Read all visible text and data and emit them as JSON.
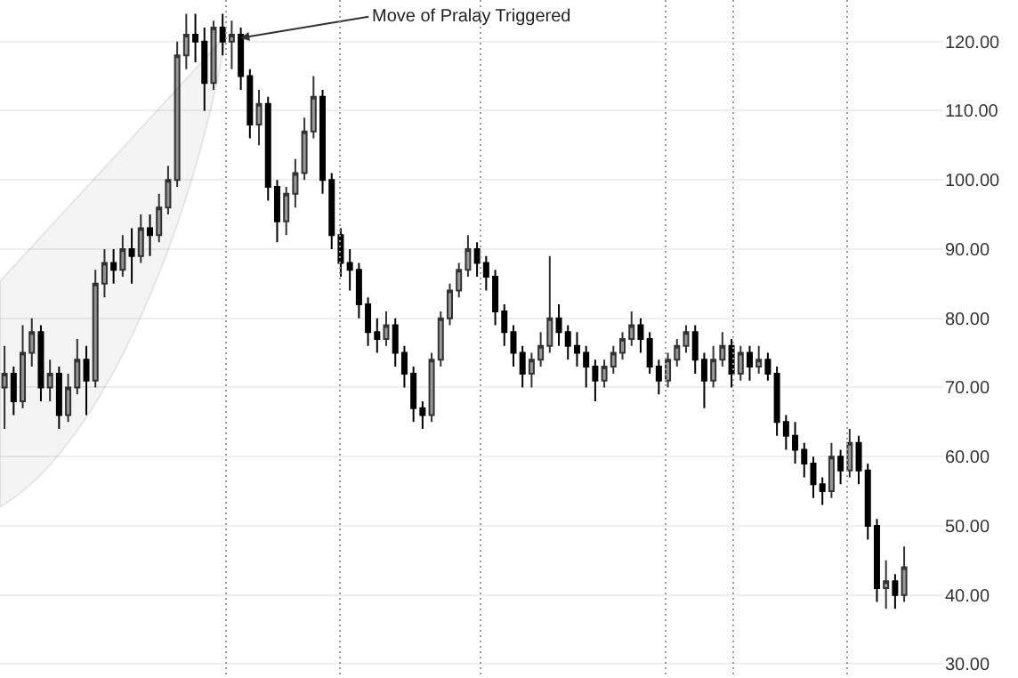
{
  "chart_data": {
    "type": "candlestick",
    "categories": [
      null,
      null,
      null,
      null,
      null,
      null,
      null,
      null,
      null,
      null,
      null,
      null,
      null,
      null,
      null,
      null,
      null,
      null,
      null,
      null,
      null,
      null,
      null,
      null,
      null,
      null,
      null,
      null,
      null,
      null,
      null,
      null,
      null,
      null,
      null,
      null,
      null,
      null,
      null,
      null,
      null,
      null,
      null,
      null,
      null,
      null,
      null,
      null,
      null,
      null,
      null,
      null,
      null,
      null,
      null,
      null,
      null,
      null,
      null,
      null,
      null,
      null,
      null,
      null,
      null,
      null,
      null,
      null,
      null,
      null,
      null,
      null,
      null,
      null,
      null,
      null,
      null,
      null,
      null,
      null,
      null,
      null,
      null,
      null,
      null,
      null,
      null,
      null,
      null,
      null,
      null,
      null,
      null,
      null,
      null,
      null,
      null,
      null,
      null,
      null
    ],
    "ohlc": [
      [
        70,
        76,
        64,
        72
      ],
      [
        72,
        73,
        66,
        68
      ],
      [
        68,
        79,
        67,
        75
      ],
      [
        75,
        80,
        73,
        78
      ],
      [
        78,
        79,
        68,
        70
      ],
      [
        70,
        74,
        68,
        72
      ],
      [
        72,
        73,
        64,
        66
      ],
      [
        66,
        72,
        65,
        70
      ],
      [
        70,
        77,
        69,
        74
      ],
      [
        74,
        76,
        66,
        71
      ],
      [
        71,
        87,
        70,
        85
      ],
      [
        85,
        90,
        83,
        88
      ],
      [
        88,
        90,
        85,
        87
      ],
      [
        87,
        92,
        86,
        90
      ],
      [
        90,
        93,
        85,
        89
      ],
      [
        89,
        95,
        88,
        93
      ],
      [
        93,
        95,
        89,
        92
      ],
      [
        92,
        98,
        91,
        96
      ],
      [
        96,
        102,
        95,
        100
      ],
      [
        100,
        120,
        99,
        118
      ],
      [
        118,
        124,
        116,
        121
      ],
      [
        121,
        124,
        117,
        120
      ],
      [
        120,
        122,
        110,
        114
      ],
      [
        114,
        123,
        113,
        122
      ],
      [
        122,
        124,
        118,
        120
      ],
      [
        120,
        123,
        116,
        121
      ],
      [
        121,
        122,
        113,
        115
      ],
      [
        115,
        116,
        106,
        108
      ],
      [
        108,
        113,
        105,
        111
      ],
      [
        111,
        112,
        97,
        99
      ],
      [
        99,
        100,
        91,
        94
      ],
      [
        94,
        99,
        92,
        98
      ],
      [
        98,
        103,
        96,
        101
      ],
      [
        101,
        109,
        100,
        107
      ],
      [
        107,
        115,
        106,
        112
      ],
      [
        112,
        113,
        98,
        100
      ],
      [
        100,
        101,
        90,
        92
      ],
      [
        92,
        93,
        86,
        88
      ],
      [
        88,
        90,
        84,
        87
      ],
      [
        87,
        88,
        80,
        82
      ],
      [
        82,
        83,
        76,
        78
      ],
      [
        78,
        80,
        75,
        77
      ],
      [
        77,
        81,
        76,
        79
      ],
      [
        79,
        80,
        73,
        75
      ],
      [
        75,
        76,
        70,
        72
      ],
      [
        72,
        73,
        65,
        67
      ],
      [
        67,
        68,
        64,
        66
      ],
      [
        66,
        75,
        65,
        74
      ],
      [
        74,
        81,
        73,
        80
      ],
      [
        80,
        85,
        79,
        84
      ],
      [
        84,
        88,
        83,
        87
      ],
      [
        87,
        92,
        86,
        90
      ],
      [
        90,
        91,
        86,
        88
      ],
      [
        88,
        89,
        84,
        86
      ],
      [
        86,
        87,
        79,
        81
      ],
      [
        81,
        82,
        76,
        78
      ],
      [
        78,
        79,
        73,
        75
      ],
      [
        75,
        76,
        70,
        72
      ],
      [
        72,
        75,
        70,
        74
      ],
      [
        74,
        78,
        73,
        76
      ],
      [
        76,
        89,
        75,
        80
      ],
      [
        80,
        82,
        76,
        78
      ],
      [
        78,
        79,
        74,
        76
      ],
      [
        76,
        78,
        73,
        75
      ],
      [
        75,
        76,
        70,
        73
      ],
      [
        73,
        74,
        68,
        71
      ],
      [
        71,
        74,
        70,
        73
      ],
      [
        73,
        76,
        72,
        75
      ],
      [
        75,
        78,
        74,
        77
      ],
      [
        77,
        81,
        76,
        79
      ],
      [
        79,
        80,
        75,
        77
      ],
      [
        77,
        78,
        72,
        73
      ],
      [
        73,
        74,
        69,
        71
      ],
      [
        71,
        75,
        70,
        74
      ],
      [
        74,
        77,
        73,
        76
      ],
      [
        76,
        79,
        75,
        78
      ],
      [
        78,
        79,
        72,
        74
      ],
      [
        74,
        75,
        67,
        71
      ],
      [
        71,
        76,
        70,
        74
      ],
      [
        74,
        78,
        73,
        76
      ],
      [
        76,
        77,
        70,
        72
      ],
      [
        72,
        76,
        71,
        75
      ],
      [
        75,
        76,
        71,
        73
      ],
      [
        73,
        76,
        72,
        74
      ],
      [
        74,
        75,
        71,
        72
      ],
      [
        72,
        73,
        63,
        65
      ],
      [
        65,
        66,
        61,
        63
      ],
      [
        63,
        65,
        59,
        61
      ],
      [
        61,
        62,
        57,
        59
      ],
      [
        59,
        60,
        54,
        56
      ],
      [
        56,
        57,
        53,
        55
      ],
      [
        55,
        62,
        54,
        60
      ],
      [
        60,
        61,
        56,
        58
      ],
      [
        58,
        64,
        57,
        62
      ],
      [
        62,
        63,
        56,
        58
      ],
      [
        58,
        59,
        48,
        50
      ],
      [
        50,
        51,
        39,
        41
      ],
      [
        41,
        45,
        38,
        42
      ],
      [
        42,
        43,
        38,
        40
      ],
      [
        40,
        47,
        39,
        44
      ]
    ],
    "ylim": [
      28,
      126
    ],
    "yticks": [
      {
        "value": 30,
        "label": "30.00"
      },
      {
        "value": 40,
        "label": "40.00"
      },
      {
        "value": 50,
        "label": "50.00"
      },
      {
        "value": 60,
        "label": "60.00"
      },
      {
        "value": 70,
        "label": "70.00"
      },
      {
        "value": 80,
        "label": "80.00"
      },
      {
        "value": 90,
        "label": "90.00"
      },
      {
        "value": 100,
        "label": "100.00"
      },
      {
        "value": 110,
        "label": "110.00"
      },
      {
        "value": 120,
        "label": "120.00"
      }
    ],
    "grid": "y",
    "annotations": [
      "Move of Pralay Triggered"
    ]
  }
}
